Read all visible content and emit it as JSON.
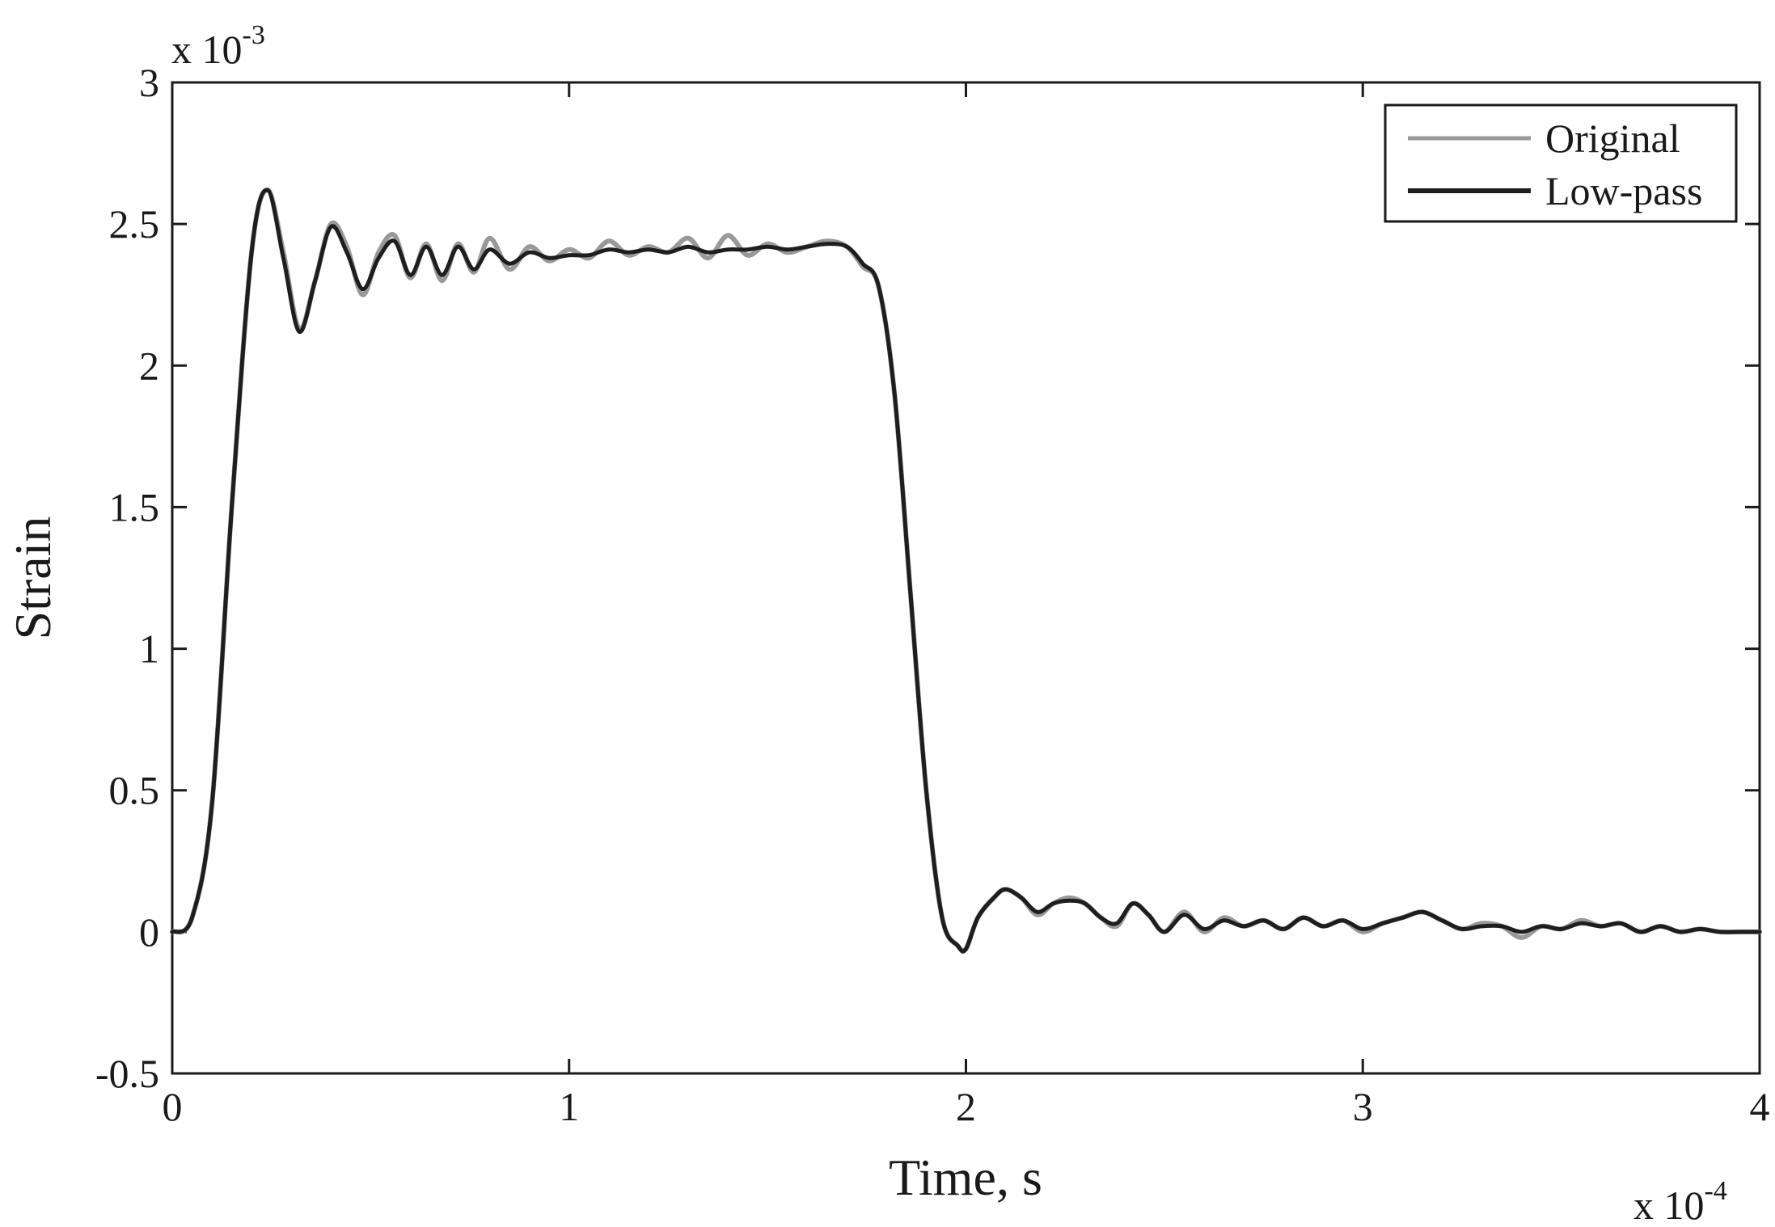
{
  "chart_data": {
    "type": "line",
    "xlabel": "Time, s",
    "ylabel": "Strain",
    "x_exponent_label": "x 10",
    "x_exponent_power": "-4",
    "y_exponent_label": "x 10",
    "y_exponent_power": "-3",
    "xlim": [
      0,
      4
    ],
    "ylim": [
      -0.5,
      3
    ],
    "xticks": [
      0,
      1,
      2,
      3,
      4
    ],
    "xtick_labels": [
      "0",
      "1",
      "2",
      "3",
      "4"
    ],
    "yticks": [
      -0.5,
      0,
      0.5,
      1,
      1.5,
      2,
      2.5,
      3
    ],
    "ytick_labels": [
      "-0.5",
      "0",
      "0.5",
      "1",
      "1.5",
      "2",
      "2.5",
      "3"
    ],
    "grid": false,
    "legend": {
      "position": "top-right",
      "entries": [
        "Original",
        "Low-pass"
      ]
    },
    "colors": {
      "original": "#999999",
      "lowpass": "#1e1e1e"
    },
    "series": [
      {
        "name": "Original",
        "x": [
          0,
          0.05,
          0.1,
          0.15,
          0.2,
          0.24,
          0.28,
          0.32,
          0.36,
          0.4,
          0.44,
          0.48,
          0.52,
          0.56,
          0.6,
          0.64,
          0.68,
          0.72,
          0.76,
          0.8,
          0.85,
          0.9,
          0.95,
          1.0,
          1.05,
          1.1,
          1.15,
          1.2,
          1.25,
          1.3,
          1.35,
          1.4,
          1.45,
          1.5,
          1.55,
          1.6,
          1.65,
          1.7,
          1.74,
          1.78,
          1.82,
          1.86,
          1.9,
          1.94,
          1.98,
          2.0,
          2.03,
          2.07,
          2.1,
          2.14,
          2.18,
          2.22,
          2.26,
          2.3,
          2.34,
          2.38,
          2.42,
          2.46,
          2.5,
          2.55,
          2.6,
          2.65,
          2.7,
          2.75,
          2.8,
          2.85,
          2.9,
          2.95,
          3.0,
          3.05,
          3.1,
          3.15,
          3.2,
          3.25,
          3.3,
          3.35,
          3.4,
          3.45,
          3.5,
          3.55,
          3.6,
          3.65,
          3.7,
          3.75,
          3.8,
          3.85,
          3.9,
          3.95,
          4.0
        ],
        "y": [
          0,
          0.05,
          0.45,
          1.5,
          2.4,
          2.62,
          2.4,
          2.13,
          2.3,
          2.5,
          2.42,
          2.25,
          2.4,
          2.46,
          2.31,
          2.43,
          2.3,
          2.43,
          2.33,
          2.45,
          2.34,
          2.42,
          2.37,
          2.41,
          2.38,
          2.44,
          2.39,
          2.42,
          2.4,
          2.45,
          2.38,
          2.46,
          2.39,
          2.43,
          2.4,
          2.42,
          2.44,
          2.42,
          2.35,
          2.28,
          1.9,
          1.2,
          0.5,
          0.05,
          -0.05,
          -0.06,
          0.05,
          0.12,
          0.15,
          0.12,
          0.06,
          0.1,
          0.12,
          0.1,
          0.05,
          0.02,
          0.1,
          0.06,
          0.0,
          0.07,
          0.0,
          0.05,
          0.02,
          0.04,
          0.01,
          0.05,
          0.02,
          0.04,
          0.0,
          0.03,
          0.05,
          0.07,
          0.04,
          0.01,
          0.03,
          0.02,
          -0.02,
          0.02,
          0.01,
          0.04,
          0.02,
          0.03,
          0.0,
          0.02,
          0.0,
          0.01,
          0.0,
          0.0,
          0.0
        ]
      },
      {
        "name": "Low-pass",
        "x": [
          0,
          0.05,
          0.1,
          0.15,
          0.2,
          0.24,
          0.28,
          0.32,
          0.36,
          0.4,
          0.44,
          0.48,
          0.52,
          0.56,
          0.6,
          0.64,
          0.68,
          0.72,
          0.76,
          0.8,
          0.85,
          0.9,
          0.95,
          1.0,
          1.05,
          1.1,
          1.15,
          1.2,
          1.25,
          1.3,
          1.35,
          1.4,
          1.45,
          1.5,
          1.55,
          1.6,
          1.65,
          1.7,
          1.74,
          1.78,
          1.82,
          1.86,
          1.9,
          1.94,
          1.98,
          2.0,
          2.03,
          2.07,
          2.1,
          2.14,
          2.18,
          2.22,
          2.26,
          2.3,
          2.34,
          2.38,
          2.42,
          2.46,
          2.5,
          2.55,
          2.6,
          2.65,
          2.7,
          2.75,
          2.8,
          2.85,
          2.9,
          2.95,
          3.0,
          3.05,
          3.1,
          3.15,
          3.2,
          3.25,
          3.3,
          3.35,
          3.4,
          3.45,
          3.5,
          3.55,
          3.6,
          3.65,
          3.7,
          3.75,
          3.8,
          3.85,
          3.9,
          3.95,
          4.0
        ],
        "y": [
          0,
          0.05,
          0.45,
          1.5,
          2.4,
          2.62,
          2.38,
          2.12,
          2.3,
          2.49,
          2.4,
          2.27,
          2.38,
          2.44,
          2.32,
          2.42,
          2.32,
          2.42,
          2.34,
          2.41,
          2.36,
          2.4,
          2.38,
          2.39,
          2.39,
          2.41,
          2.4,
          2.41,
          2.4,
          2.42,
          2.4,
          2.41,
          2.41,
          2.42,
          2.41,
          2.42,
          2.43,
          2.42,
          2.36,
          2.28,
          1.9,
          1.2,
          0.5,
          0.05,
          -0.05,
          -0.06,
          0.05,
          0.12,
          0.15,
          0.12,
          0.07,
          0.1,
          0.11,
          0.1,
          0.05,
          0.03,
          0.1,
          0.06,
          0.0,
          0.06,
          0.01,
          0.04,
          0.02,
          0.04,
          0.01,
          0.05,
          0.02,
          0.04,
          0.01,
          0.03,
          0.05,
          0.07,
          0.04,
          0.01,
          0.02,
          0.02,
          0.0,
          0.02,
          0.01,
          0.03,
          0.02,
          0.03,
          0.0,
          0.02,
          0.0,
          0.01,
          0.0,
          0.0,
          0.0
        ]
      }
    ]
  }
}
